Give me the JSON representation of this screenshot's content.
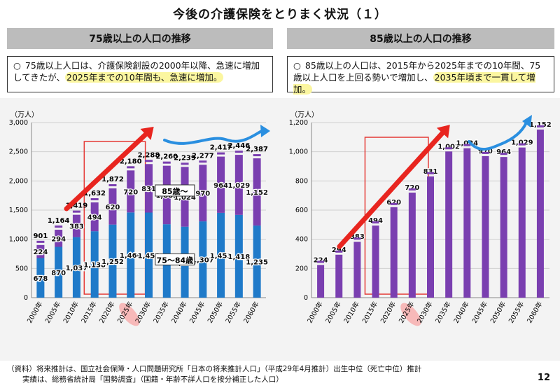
{
  "title": "今後の介護保険をとりまく状況（１）",
  "page_number": "12",
  "left_panel": {
    "heading": "75歳以上の人口の推移",
    "bullet": "○",
    "text_plain": "75歳以上人口は、介護保険創設の2000年以降、急速に増加してきたが、",
    "text_highlight": "2025年までの10年間も、急速に増加。"
  },
  "right_panel": {
    "heading": "85歳以上の人口の推移",
    "bullet": "○",
    "text_plain": "85歳以上の人口は、2015年から2025年までの10年間、75歳以上人口を上回る勢いで増加し、",
    "text_highlight": "2035年頃まで一貫して増加。"
  },
  "footer": {
    "line1": "（資料）将来推計は、国立社会保障・人口問題研究所「日本の将来推計人口」（平成29年4月推計）出生中位（死亡中位）推計",
    "line2": "実績は、総務省統計局「国勢調査」（国籍・年齢不詳人口を按分補正した人口）"
  },
  "chart_data": [
    {
      "type": "bar",
      "stacked": true,
      "unit_label": "（万人）",
      "categories": [
        "2000年",
        "2005年",
        "2010年",
        "2015年",
        "2020年",
        "2025年",
        "2030年",
        "2035年",
        "2040年",
        "2045年",
        "2050年",
        "2055年",
        "2060年"
      ],
      "highlight_category": "2025年",
      "ylim": [
        0,
        3000
      ],
      "yticks": [
        0,
        500,
        1000,
        1500,
        2000,
        2500,
        3000
      ],
      "ytick_labels": [
        "0",
        "500",
        "1,000",
        "1,500",
        "2,000",
        "2,500",
        "3,000"
      ],
      "series": [
        {
          "name": "75～84歳",
          "color": "#1f7ac9",
          "values": [
            678,
            870,
            1037,
            1138,
            1252,
            1460,
            1458,
            1258,
            1216,
            1307,
            1453,
            1418,
            1235
          ]
        },
        {
          "name": "85歳～",
          "color": "#7a3fb0",
          "values": [
            224,
            294,
            383,
            494,
            620,
            720,
            831,
            1002,
            1024,
            970,
            964,
            1029,
            1152
          ]
        }
      ],
      "totals": [
        901,
        1164,
        1419,
        1632,
        1872,
        2180,
        2288,
        2260,
        2239,
        2277,
        2417,
        2446,
        2387
      ],
      "series_labels": [
        "85歳～",
        "75～84歳"
      ]
    },
    {
      "type": "bar",
      "unit_label": "（万人）",
      "categories": [
        "2000年",
        "2005年",
        "2010年",
        "2015年",
        "2020年",
        "2025年",
        "2030年",
        "2035年",
        "2040年",
        "2045年",
        "2050年",
        "2055年",
        "2060年"
      ],
      "highlight_category": "2025年",
      "ylim": [
        0,
        1200
      ],
      "yticks": [
        0,
        200,
        400,
        600,
        800,
        1000,
        1200
      ],
      "ytick_labels": [
        "0",
        "200",
        "400",
        "600",
        "800",
        "1,000",
        "1,200"
      ],
      "series": [
        {
          "name": "85歳～",
          "color": "#7a3fb0",
          "values": [
            224,
            294,
            383,
            494,
            620,
            720,
            831,
            1002,
            1024,
            970,
            964,
            1029,
            1152
          ]
        }
      ]
    }
  ],
  "colors": {
    "arrow_red": "#e8251f",
    "arrow_blue": "#2a8fe0",
    "highlight_box": "#e53935",
    "highlight_year_bg": "#f7b9b9"
  }
}
